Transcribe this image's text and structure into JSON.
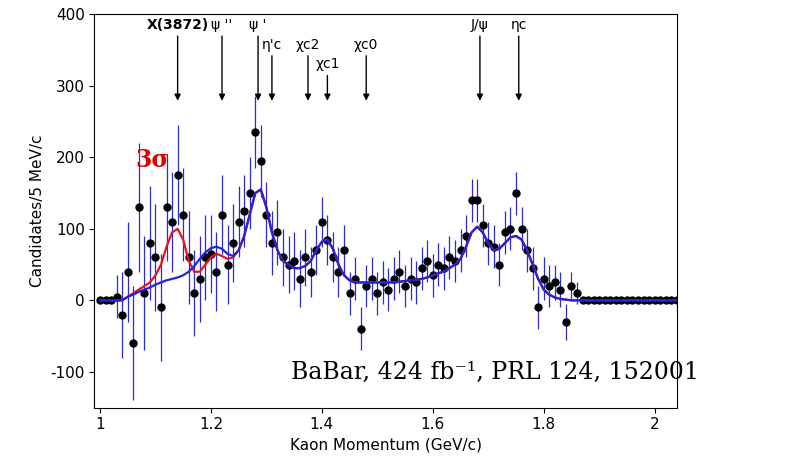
{
  "chart_data": {
    "type": "scatter",
    "xlabel": "Kaon Momentum (GeV/c)",
    "ylabel": "Candidates/5 MeV/c",
    "xlim": [
      0.99,
      2.04
    ],
    "xticks": [
      1,
      1.2,
      1.4,
      1.6,
      1.8,
      2
    ],
    "ylim": [
      -150,
      400
    ],
    "yticks": [
      -100,
      0,
      100,
      200,
      300,
      400
    ],
    "grid": false,
    "x": [
      1.0,
      1.01,
      1.02,
      1.03,
      1.04,
      1.05,
      1.06,
      1.07,
      1.08,
      1.09,
      1.1,
      1.11,
      1.12,
      1.13,
      1.14,
      1.15,
      1.16,
      1.17,
      1.18,
      1.19,
      1.2,
      1.21,
      1.22,
      1.23,
      1.24,
      1.25,
      1.26,
      1.27,
      1.28,
      1.29,
      1.3,
      1.31,
      1.32,
      1.33,
      1.34,
      1.35,
      1.36,
      1.37,
      1.38,
      1.39,
      1.4,
      1.41,
      1.42,
      1.43,
      1.44,
      1.45,
      1.46,
      1.47,
      1.48,
      1.49,
      1.5,
      1.51,
      1.52,
      1.53,
      1.54,
      1.55,
      1.56,
      1.57,
      1.58,
      1.59,
      1.6,
      1.61,
      1.62,
      1.63,
      1.64,
      1.65,
      1.66,
      1.67,
      1.68,
      1.69,
      1.7,
      1.71,
      1.72,
      1.73,
      1.74,
      1.75,
      1.76,
      1.77,
      1.78,
      1.79,
      1.8,
      1.81,
      1.82,
      1.83,
      1.84,
      1.85,
      1.86,
      1.87,
      1.88,
      1.89,
      1.9,
      1.91,
      1.92,
      1.93,
      1.94,
      1.95,
      1.96,
      1.97,
      1.98,
      1.99,
      2.0,
      2.01,
      2.02,
      2.03,
      2.04
    ],
    "series": [
      {
        "type": "scatter",
        "color": "#000000",
        "marker": "circle",
        "values": [
          0,
          0,
          0,
          5,
          -20,
          40,
          -60,
          130,
          10,
          80,
          60,
          -10,
          130,
          110,
          175,
          120,
          60,
          10,
          30,
          60,
          65,
          40,
          120,
          50,
          80,
          110,
          125,
          150,
          235,
          195,
          120,
          80,
          95,
          60,
          50,
          55,
          30,
          60,
          40,
          70,
          110,
          85,
          60,
          40,
          70,
          10,
          30,
          -40,
          20,
          30,
          10,
          25,
          15,
          30,
          40,
          20,
          30,
          25,
          45,
          55,
          35,
          50,
          45,
          60,
          55,
          70,
          90,
          140,
          140,
          105,
          80,
          75,
          50,
          95,
          100,
          150,
          100,
          70,
          45,
          -10,
          30,
          20,
          25,
          15,
          -30,
          20,
          10,
          0,
          0,
          0,
          0,
          0,
          0,
          0,
          0,
          0,
          0,
          0,
          0,
          0,
          0,
          0,
          0,
          0,
          0
        ],
        "errors": [
          3,
          3,
          3,
          30,
          60,
          70,
          80,
          90,
          80,
          80,
          75,
          75,
          75,
          70,
          70,
          65,
          65,
          60,
          60,
          60,
          55,
          55,
          55,
          55,
          55,
          50,
          50,
          50,
          50,
          50,
          45,
          45,
          45,
          40,
          40,
          40,
          40,
          40,
          35,
          35,
          35,
          35,
          35,
          35,
          35,
          30,
          30,
          30,
          30,
          30,
          30,
          30,
          30,
          30,
          30,
          30,
          30,
          30,
          30,
          30,
          30,
          30,
          30,
          30,
          30,
          30,
          30,
          30,
          30,
          30,
          30,
          30,
          30,
          30,
          30,
          30,
          30,
          30,
          30,
          30,
          30,
          30,
          25,
          25,
          25,
          20,
          15,
          3,
          3,
          3,
          3,
          3,
          3,
          3,
          3,
          3,
          3,
          3,
          3,
          3,
          3,
          3,
          3,
          3,
          3
        ]
      },
      {
        "type": "line",
        "color": "#e8141c",
        "values": [
          0,
          0,
          0,
          0,
          0,
          5,
          10,
          15,
          20,
          25,
          35,
          50,
          75,
          95,
          100,
          85,
          55,
          40,
          40,
          50,
          60,
          65,
          62,
          58,
          60,
          70,
          90,
          120,
          150,
          155,
          130,
          95,
          70,
          55,
          50,
          45,
          45,
          48,
          55,
          70,
          82,
          85,
          72,
          50,
          35,
          28,
          25,
          25,
          25,
          25,
          25,
          25,
          25,
          25,
          26,
          27,
          28,
          29,
          30,
          32,
          35,
          38,
          40,
          45,
          50,
          58,
          75,
          95,
          103,
          95,
          80,
          70,
          72,
          80,
          88,
          90,
          85,
          70,
          50,
          30,
          15,
          8,
          4,
          2,
          1,
          0,
          0,
          0,
          0,
          0,
          0,
          0,
          0,
          0,
          0,
          0,
          0,
          0,
          0,
          0,
          0,
          0,
          0,
          0,
          0
        ]
      },
      {
        "type": "line",
        "color": "#2222e0",
        "values": [
          0,
          0,
          0,
          0,
          0,
          5,
          8,
          12,
          15,
          18,
          22,
          25,
          28,
          30,
          32,
          35,
          40,
          48,
          58,
          67,
          73,
          75,
          72,
          65,
          62,
          70,
          90,
          120,
          150,
          155,
          130,
          95,
          70,
          55,
          50,
          45,
          45,
          48,
          55,
          70,
          82,
          85,
          72,
          50,
          35,
          28,
          25,
          25,
          25,
          25,
          25,
          25,
          25,
          25,
          26,
          27,
          28,
          29,
          30,
          32,
          35,
          38,
          40,
          45,
          50,
          58,
          75,
          95,
          103,
          95,
          80,
          70,
          72,
          80,
          88,
          90,
          85,
          70,
          50,
          30,
          15,
          8,
          4,
          2,
          1,
          0,
          0,
          0,
          0,
          0,
          0,
          0,
          0,
          0,
          0,
          0,
          0,
          0,
          0,
          0,
          0,
          0,
          0,
          0,
          0
        ]
      }
    ],
    "markers": [
      {
        "label": "X(3872)",
        "x": 1.14
      },
      {
        "label": "ψ ''",
        "x": 1.22
      },
      {
        "label": "ψ '",
        "x": 1.285
      },
      {
        "label": "η'c",
        "x": 1.31
      },
      {
        "label": "χc2",
        "x": 1.375
      },
      {
        "label": "χc1",
        "x": 1.41
      },
      {
        "label": "χc0",
        "x": 1.48
      },
      {
        "label": "J/ψ",
        "x": 1.685
      },
      {
        "label": "ηc",
        "x": 1.755
      }
    ],
    "annotations": [
      "3σ",
      "BaBar, 424 fb⁻¹, PRL 124, 152001"
    ]
  }
}
